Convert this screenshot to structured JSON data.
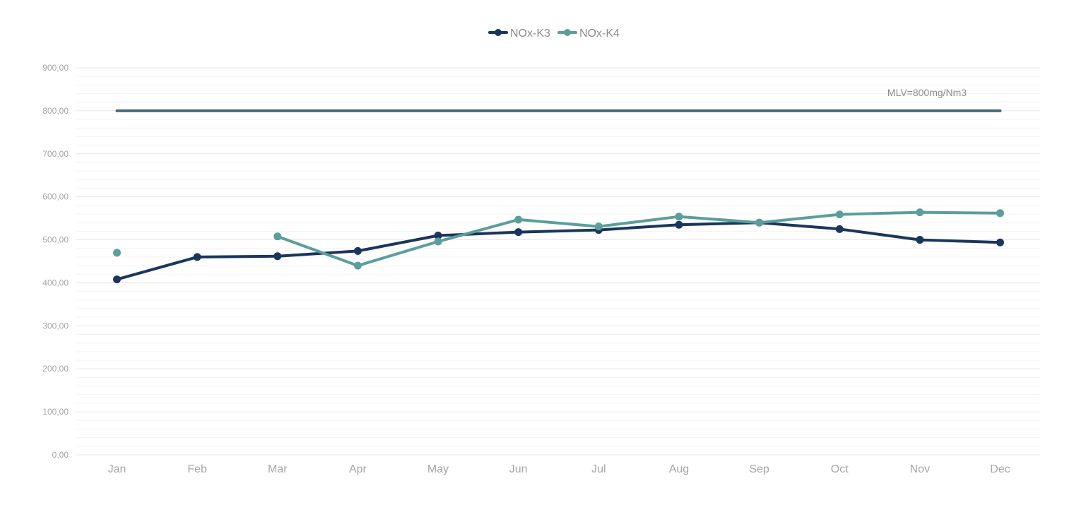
{
  "chart_data": {
    "type": "line",
    "title": "",
    "xlabel": "",
    "ylabel": "",
    "categories": [
      "Jan",
      "Feb",
      "Mar",
      "Apr",
      "May",
      "Jun",
      "Jul",
      "Aug",
      "Sep",
      "Oct",
      "Nov",
      "Dec"
    ],
    "ylim": [
      0,
      900
    ],
    "yticks": [
      "0,00",
      "100,00",
      "200,00",
      "300,00",
      "400,00",
      "500,00",
      "600,00",
      "700,00",
      "800,00",
      "900,00"
    ],
    "grid": true,
    "legend_position": "top-center",
    "series": [
      {
        "name": "NOx-K3",
        "color": "#1b365d",
        "values": [
          408,
          460,
          462,
          474,
          510,
          518,
          523,
          535,
          540,
          525,
          500,
          494
        ]
      },
      {
        "name": "NOx-K4",
        "color": "#5b9e9b",
        "values": [
          470,
          null,
          508,
          440,
          496,
          547,
          531,
          554,
          540,
          559,
          564,
          562
        ]
      }
    ],
    "reference_line": {
      "value": 800,
      "label": "MLV=800mg/Nm3",
      "color": "#4a6a77"
    }
  }
}
